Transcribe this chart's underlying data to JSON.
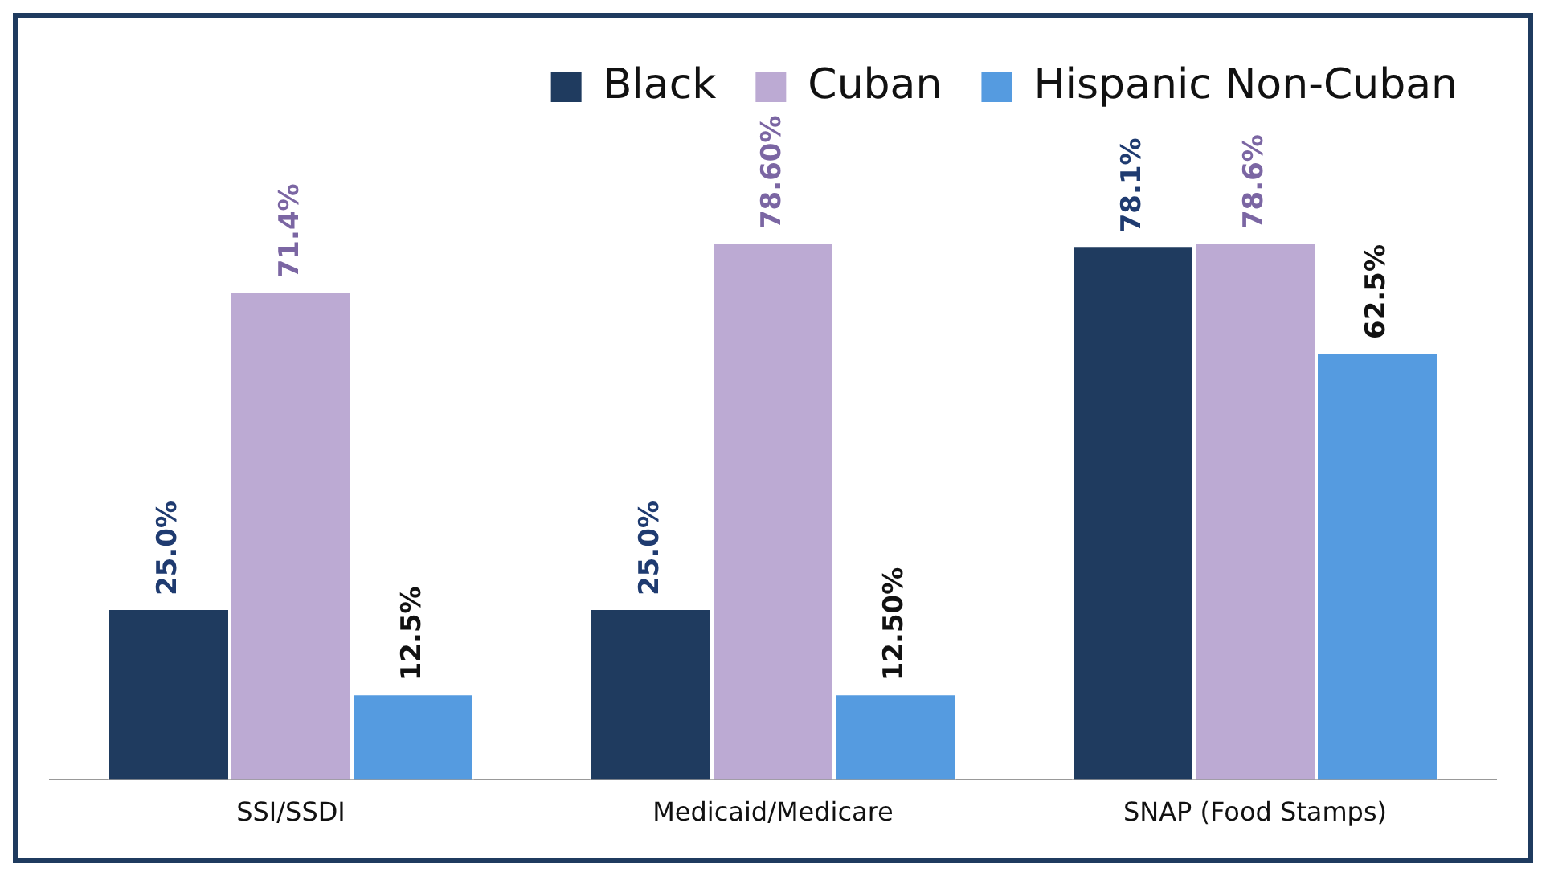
{
  "chart_data": {
    "type": "bar",
    "categories": [
      "SSI/SSDI",
      "Medicaid/Medicare",
      "SNAP (Food Stamps)"
    ],
    "legend": "top right",
    "grid": false,
    "series": [
      {
        "name": "Black",
        "color": "#1f3b5f",
        "values": [
          25.0,
          25.0,
          78.1
        ],
        "value_labels": [
          "25.0%",
          "25.0%",
          "78.1%"
        ]
      },
      {
        "name": "Cuban",
        "color": "#bcaad3",
        "values": [
          71.4,
          78.6,
          78.6
        ],
        "value_labels": [
          "71.4%",
          "78.60%",
          "78.6%"
        ]
      },
      {
        "name": "Hispanic Non-Cuban",
        "color": "#559be0",
        "values": [
          12.5,
          12.5,
          62.5
        ],
        "value_labels": [
          "12.5%",
          "12.50%",
          "62.5%"
        ]
      }
    ]
  }
}
